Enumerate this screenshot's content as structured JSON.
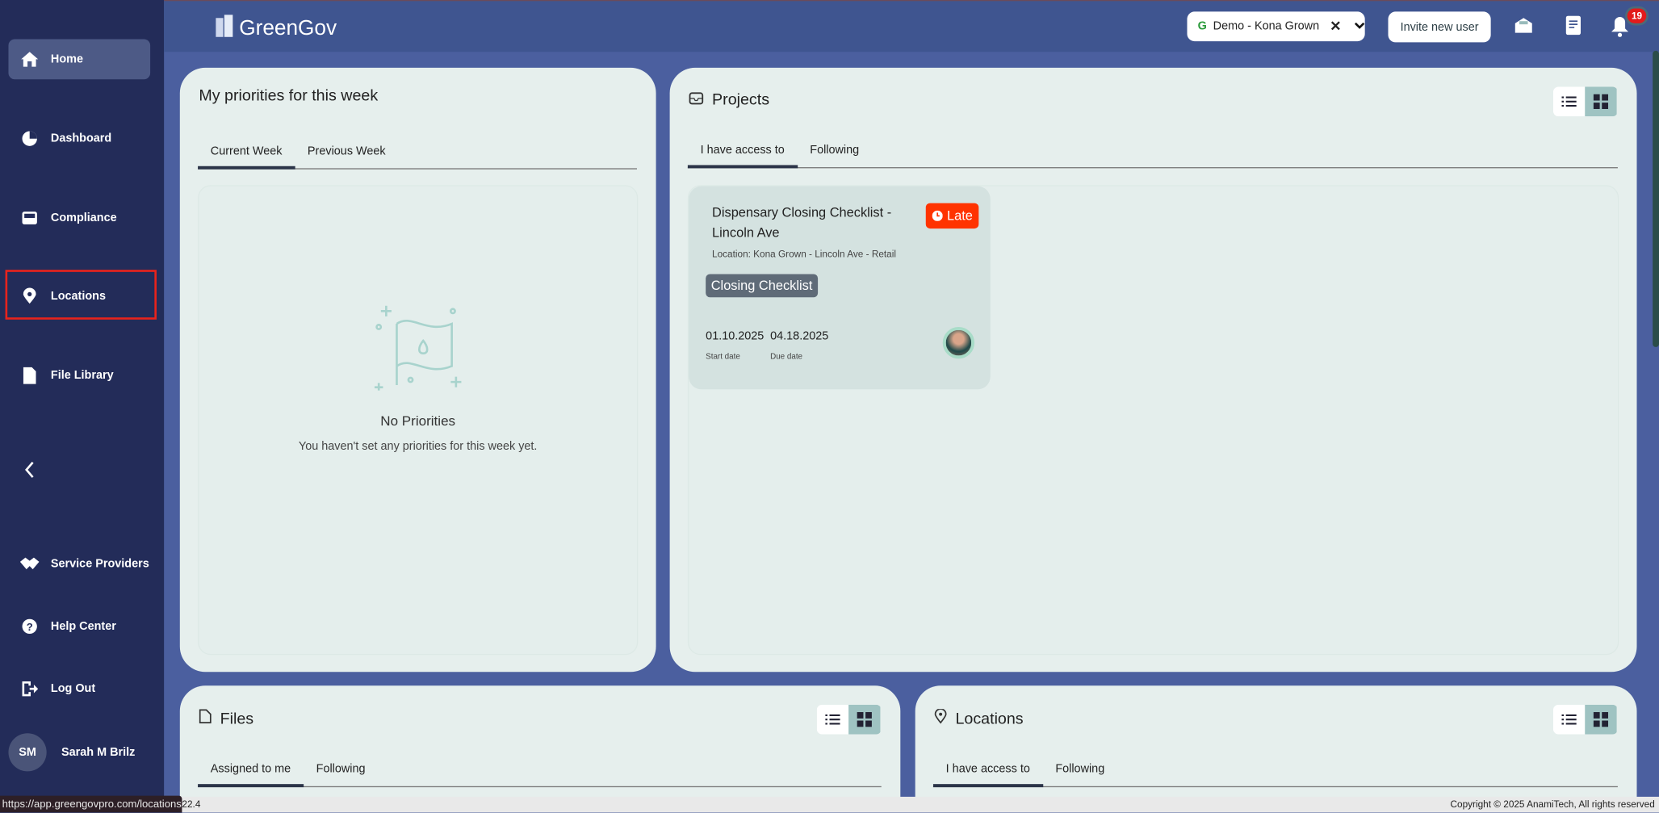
{
  "app": {
    "name": "GreenGov"
  },
  "sidebar": {
    "items": [
      {
        "label": "Home",
        "icon": "home-icon"
      },
      {
        "label": "Dashboard",
        "icon": "pie-chart-icon"
      },
      {
        "label": "Compliance",
        "icon": "inbox-icon"
      },
      {
        "label": "Locations",
        "icon": "map-pin-icon"
      },
      {
        "label": "File Library",
        "icon": "file-icon"
      },
      {
        "label": "Service Providers",
        "icon": "handshake-icon"
      },
      {
        "label": "Help Center",
        "icon": "help-icon"
      },
      {
        "label": "Log Out",
        "icon": "logout-icon"
      }
    ],
    "collapse_icon": "chevron-left-icon",
    "user": {
      "initials": "SM",
      "name": "Sarah M Brilz"
    }
  },
  "header": {
    "org_selector": "Demo - Kona Grown",
    "invite_label": "Invite new user",
    "notification_count": "19"
  },
  "priorities": {
    "title": "My priorities for this week",
    "tabs": [
      "Current Week",
      "Previous Week"
    ],
    "empty_title": "No Priorities",
    "empty_text": "You haven't set any priorities for this week yet."
  },
  "projects": {
    "title": "Projects",
    "tabs": [
      "I have access to",
      "Following"
    ],
    "items": [
      {
        "title": "Dispensary Closing Checklist - Lincoln Ave",
        "status": "Late",
        "location": "Location: Kona Grown - Lincoln Ave - Retail",
        "tag": "Closing Checklist",
        "start_date": "01.10.2025",
        "start_label": "Start date",
        "due_date": "04.18.2025",
        "due_label": "Due date"
      }
    ]
  },
  "files": {
    "title": "Files",
    "tabs": [
      "Assigned to me",
      "Following"
    ]
  },
  "locations": {
    "title": "Locations",
    "tabs": [
      "I have access to",
      "Following"
    ]
  },
  "footer": {
    "version": "22.4",
    "copyright": "Copyright © 2025 AnamiTech, All rights reserved"
  },
  "status_url": "https://app.greengovpro.com/locations",
  "colors": {
    "sidebar": "#232c59",
    "topbar": "#3f5590",
    "late": "#ff3300",
    "tag": "#5f6b78",
    "highlight": "#e8231c"
  }
}
